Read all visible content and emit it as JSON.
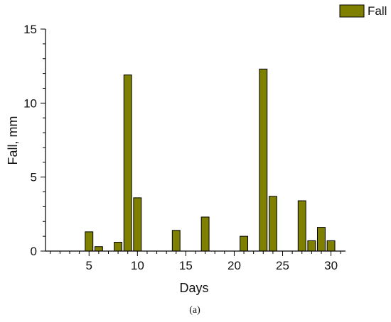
{
  "chart_data": {
    "type": "bar",
    "xlabel": "Days",
    "ylabel": "Fall, mm",
    "xlim": [
      0.5,
      31.5
    ],
    "ylim": [
      0,
      15
    ],
    "xticks": [
      5,
      10,
      15,
      20,
      25,
      30
    ],
    "yticks": [
      0,
      5,
      10,
      15
    ],
    "grid": false,
    "legend_position": "top-right",
    "series": [
      {
        "name": "Fall",
        "color": "#808000",
        "points": [
          {
            "x": 5,
            "y": 1.3
          },
          {
            "x": 6,
            "y": 0.3
          },
          {
            "x": 8,
            "y": 0.6
          },
          {
            "x": 9,
            "y": 11.9
          },
          {
            "x": 10,
            "y": 3.6
          },
          {
            "x": 14,
            "y": 1.4
          },
          {
            "x": 17,
            "y": 2.3
          },
          {
            "x": 21,
            "y": 1.0
          },
          {
            "x": 23,
            "y": 12.3
          },
          {
            "x": 24,
            "y": 3.7
          },
          {
            "x": 27,
            "y": 3.4
          },
          {
            "x": 28,
            "y": 0.7
          },
          {
            "x": 29,
            "y": 1.6
          },
          {
            "x": 30,
            "y": 0.7
          }
        ]
      }
    ],
    "caption": "(a)"
  }
}
